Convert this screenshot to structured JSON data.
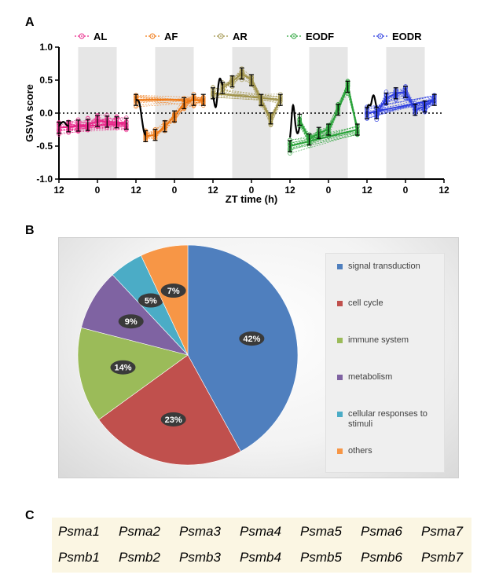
{
  "panel_labels": {
    "a": "A",
    "b": "B",
    "c": "C"
  },
  "chart_data": [
    {
      "type": "line",
      "panel": "A",
      "ylabel": "GSVA score",
      "xlabel": "ZT time (h)",
      "ylim": [
        -1.0,
        1.0
      ],
      "yticks": [
        "1.0",
        "0.5",
        "0.0",
        "-0.5",
        "-1.0"
      ],
      "xtick_labels": [
        "12",
        "0",
        "12",
        "0",
        "12",
        "0",
        "12",
        "0",
        "12",
        "0",
        "12"
      ],
      "reference_line": 0,
      "dark_phase_shading": true,
      "series": [
        {
          "name": "AL",
          "color": "#e8288a",
          "x": [
            15,
            18,
            21,
            0,
            3,
            6,
            9,
            12
          ],
          "y": [
            -0.2,
            -0.19,
            -0.18,
            -0.12,
            -0.13,
            -0.14,
            -0.16,
            -0.22
          ]
        },
        {
          "name": "AF",
          "color": "#f07a16",
          "x": [
            15,
            18,
            21,
            0,
            3,
            6,
            9,
            12
          ],
          "y": [
            -0.35,
            -0.33,
            -0.2,
            -0.05,
            0.15,
            0.2,
            0.2,
            0.2
          ]
        },
        {
          "name": "AR",
          "color": "#a0934a",
          "x": [
            15,
            18,
            21,
            0,
            3,
            6,
            9,
            12
          ],
          "y": [
            0.38,
            0.48,
            0.6,
            0.5,
            0.2,
            -0.08,
            0.2,
            0.3
          ]
        },
        {
          "name": "EODF",
          "color": "#2aa33a",
          "x": [
            15,
            18,
            21,
            0,
            3,
            6,
            9,
            12
          ],
          "y": [
            -0.1,
            -0.4,
            -0.3,
            -0.25,
            0.05,
            0.4,
            -0.25,
            -0.5
          ]
        },
        {
          "name": "EODR",
          "color": "#2c3de0",
          "x": [
            15,
            18,
            21,
            0,
            3,
            6,
            9,
            12
          ],
          "y": [
            0.0,
            0.22,
            0.3,
            0.32,
            0.05,
            0.1,
            0.2,
            0.0
          ]
        }
      ]
    },
    {
      "type": "pie",
      "panel": "B",
      "categories": [
        "signal transduction",
        "cell cycle",
        "immune system",
        "metabolism",
        "cellular responses to stimuli",
        "others"
      ],
      "values": [
        42,
        23,
        14,
        9,
        5,
        7
      ],
      "value_labels": [
        "42%",
        "23%",
        "14%",
        "9%",
        "5%",
        "7%"
      ],
      "colors": [
        "#4f7fbe",
        "#c0504d",
        "#9bbb59",
        "#7f63a2",
        "#4bacc6",
        "#f79646"
      ],
      "legend_placement": "right"
    }
  ],
  "genes": {
    "row1": [
      "Psma1",
      "Psma2",
      "Psma3",
      "Psma4",
      "Psma5",
      "Psma6",
      "Psma7"
    ],
    "row2": [
      "Psmb1",
      "Psmb2",
      "Psmb3",
      "Psmb4",
      "Psmb5",
      "Psmb6",
      "Psmb7"
    ]
  }
}
